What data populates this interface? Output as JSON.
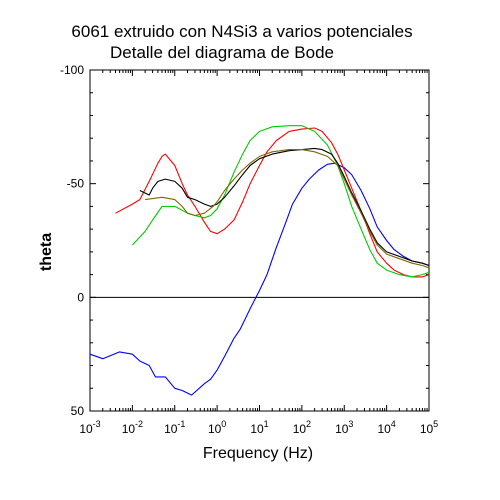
{
  "chart_data": {
    "type": "line",
    "title": "6061 extruido con N4Si3 a varios potenciales",
    "subtitle": "Detalle del diagrama de Bode",
    "xlabel": "Frequency (Hz)",
    "ylabel": "theta",
    "x_scale": "log",
    "xlim": [
      0.001,
      100000
    ],
    "ylim": [
      50,
      -100
    ],
    "y_inverted": true,
    "grid": false,
    "x_ticks": [
      {
        "base": "10",
        "exp": "-3",
        "value": 0.001
      },
      {
        "base": "10",
        "exp": "-2",
        "value": 0.01
      },
      {
        "base": "10",
        "exp": "-1",
        "value": 0.1
      },
      {
        "base": "10",
        "exp": "0",
        "value": 1
      },
      {
        "base": "10",
        "exp": "1",
        "value": 10
      },
      {
        "base": "10",
        "exp": "2",
        "value": 100
      },
      {
        "base": "10",
        "exp": "3",
        "value": 1000
      },
      {
        "base": "10",
        "exp": "4",
        "value": 10000
      },
      {
        "base": "10",
        "exp": "5",
        "value": 100000
      }
    ],
    "y_ticks": [
      {
        "label": "-100",
        "value": -100
      },
      {
        "label": "-50",
        "value": -50
      },
      {
        "label": "0",
        "value": 0
      },
      {
        "label": "50",
        "value": 50
      }
    ],
    "reference_line": {
      "y": 0,
      "color": "#000000"
    },
    "series": [
      {
        "color": "#0000ff",
        "points": [
          [
            0.001,
            25
          ],
          [
            0.002,
            27
          ],
          [
            0.005,
            24
          ],
          [
            0.01,
            25
          ],
          [
            0.015,
            28
          ],
          [
            0.025,
            30
          ],
          [
            0.035,
            35
          ],
          [
            0.06,
            35
          ],
          [
            0.1,
            40
          ],
          [
            0.15,
            41
          ],
          [
            0.25,
            43
          ],
          [
            0.5,
            38
          ],
          [
            0.7,
            36
          ],
          [
            1,
            32
          ],
          [
            1.5,
            26
          ],
          [
            2.5,
            18
          ],
          [
            3.5,
            14
          ],
          [
            6,
            5
          ],
          [
            10,
            -3
          ],
          [
            15,
            -10
          ],
          [
            25,
            -22
          ],
          [
            40,
            -32
          ],
          [
            60,
            -41
          ],
          [
            100,
            -48
          ],
          [
            150,
            -52
          ],
          [
            250,
            -56
          ],
          [
            400,
            -58.5
          ],
          [
            600,
            -59
          ],
          [
            1000,
            -57
          ],
          [
            1500,
            -54
          ],
          [
            2500,
            -47
          ],
          [
            4000,
            -39
          ],
          [
            6000,
            -31
          ],
          [
            10000,
            -25
          ],
          [
            15000,
            -21
          ],
          [
            25000,
            -18
          ],
          [
            40000,
            -16
          ],
          [
            70000,
            -15
          ],
          [
            100000,
            -14
          ]
        ]
      },
      {
        "color": "#ff0000",
        "points": [
          [
            0.004,
            -37
          ],
          [
            0.01,
            -41
          ],
          [
            0.015,
            -43
          ],
          [
            0.025,
            -51
          ],
          [
            0.04,
            -59
          ],
          [
            0.05,
            -62
          ],
          [
            0.06,
            -63
          ],
          [
            0.1,
            -58
          ],
          [
            0.15,
            -50
          ],
          [
            0.2,
            -45
          ],
          [
            0.3,
            -40
          ],
          [
            0.5,
            -33
          ],
          [
            0.7,
            -29
          ],
          [
            1,
            -28
          ],
          [
            1.5,
            -30
          ],
          [
            2.5,
            -34
          ],
          [
            4,
            -42
          ],
          [
            6,
            -50
          ],
          [
            10,
            -58
          ],
          [
            15,
            -64
          ],
          [
            25,
            -69
          ],
          [
            50,
            -73
          ],
          [
            100,
            -74
          ],
          [
            200,
            -74.5
          ],
          [
            300,
            -73
          ],
          [
            500,
            -68
          ],
          [
            700,
            -63
          ],
          [
            1000,
            -56
          ],
          [
            1500,
            -48
          ],
          [
            2500,
            -38
          ],
          [
            4000,
            -28
          ],
          [
            6000,
            -20
          ],
          [
            10000,
            -15
          ],
          [
            15000,
            -12
          ],
          [
            25000,
            -10
          ],
          [
            40000,
            -9
          ],
          [
            70000,
            -9
          ],
          [
            100000,
            -10
          ]
        ]
      },
      {
        "color": "#00cc00",
        "points": [
          [
            0.01,
            -23
          ],
          [
            0.02,
            -29
          ],
          [
            0.03,
            -34
          ],
          [
            0.05,
            -40
          ],
          [
            0.1,
            -40
          ],
          [
            0.2,
            -37
          ],
          [
            0.3,
            -36
          ],
          [
            0.5,
            -35
          ],
          [
            0.7,
            -36
          ],
          [
            1,
            -39
          ],
          [
            1.5,
            -45
          ],
          [
            2.5,
            -55
          ],
          [
            4,
            -63
          ],
          [
            6,
            -69
          ],
          [
            10,
            -73
          ],
          [
            20,
            -75
          ],
          [
            50,
            -75.5
          ],
          [
            100,
            -75.5
          ],
          [
            200,
            -73
          ],
          [
            400,
            -67
          ],
          [
            700,
            -58
          ],
          [
            1000,
            -50
          ],
          [
            1500,
            -40
          ],
          [
            2500,
            -30
          ],
          [
            4000,
            -21
          ],
          [
            6000,
            -15
          ],
          [
            10000,
            -12
          ],
          [
            20000,
            -10
          ],
          [
            40000,
            -9
          ],
          [
            70000,
            -10
          ],
          [
            100000,
            -11
          ]
        ]
      },
      {
        "color": "#000000",
        "points": [
          [
            0.015,
            -47
          ],
          [
            0.025,
            -45
          ],
          [
            0.03,
            -48
          ],
          [
            0.04,
            -51
          ],
          [
            0.06,
            -52
          ],
          [
            0.1,
            -51
          ],
          [
            0.15,
            -48
          ],
          [
            0.2,
            -44
          ],
          [
            0.3,
            -43
          ],
          [
            0.5,
            -41
          ],
          [
            0.7,
            -40
          ],
          [
            1,
            -41
          ],
          [
            1.5,
            -44
          ],
          [
            2.5,
            -49
          ],
          [
            4,
            -54
          ],
          [
            6,
            -58
          ],
          [
            10,
            -61
          ],
          [
            20,
            -63
          ],
          [
            50,
            -64.5
          ],
          [
            100,
            -65
          ],
          [
            200,
            -65.5
          ],
          [
            300,
            -65
          ],
          [
            500,
            -63
          ],
          [
            700,
            -59
          ],
          [
            1000,
            -53
          ],
          [
            1500,
            -46
          ],
          [
            2500,
            -38
          ],
          [
            4000,
            -30
          ],
          [
            6000,
            -24
          ],
          [
            10000,
            -20
          ],
          [
            20000,
            -18
          ],
          [
            40000,
            -16
          ],
          [
            70000,
            -15
          ],
          [
            100000,
            -14
          ]
        ]
      },
      {
        "color": "#806600",
        "points": [
          [
            0.02,
            -43
          ],
          [
            0.05,
            -44
          ],
          [
            0.1,
            -43
          ],
          [
            0.15,
            -40
          ],
          [
            0.2,
            -37
          ],
          [
            0.3,
            -36
          ],
          [
            0.5,
            -37
          ],
          [
            0.8,
            -40
          ],
          [
            1,
            -42
          ],
          [
            1.5,
            -47
          ],
          [
            2.5,
            -52
          ],
          [
            4,
            -56
          ],
          [
            6,
            -59
          ],
          [
            10,
            -62
          ],
          [
            20,
            -64
          ],
          [
            50,
            -65
          ],
          [
            100,
            -65
          ],
          [
            200,
            -64
          ],
          [
            400,
            -62
          ],
          [
            700,
            -58
          ],
          [
            1000,
            -52
          ],
          [
            1500,
            -45
          ],
          [
            2500,
            -37
          ],
          [
            4000,
            -29
          ],
          [
            6000,
            -23
          ],
          [
            10000,
            -19
          ],
          [
            20000,
            -17
          ],
          [
            40000,
            -15
          ],
          [
            70000,
            -14
          ],
          [
            100000,
            -13
          ]
        ]
      }
    ]
  }
}
